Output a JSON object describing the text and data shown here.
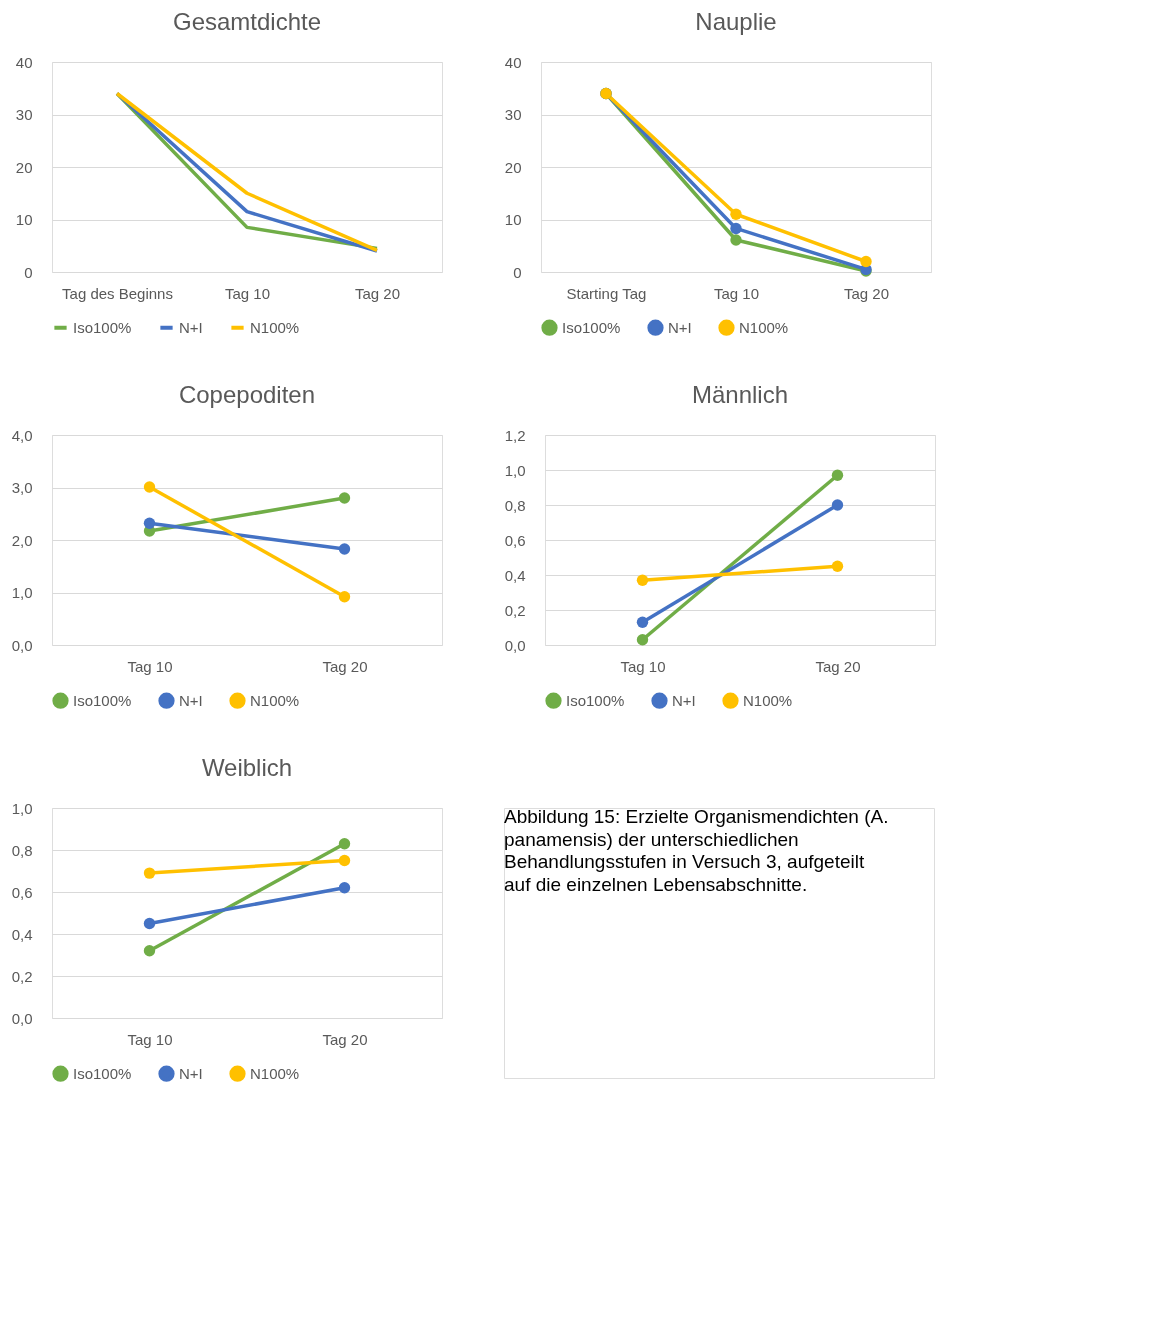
{
  "chart_data": [
    {
      "type": "line",
      "title": "Gesamtdichte",
      "categories": [
        "Tag des Beginns",
        "Tag 10",
        "Tag 20"
      ],
      "ylim": [
        0,
        40
      ],
      "yticks": [
        0,
        10,
        20,
        30,
        40
      ],
      "grid": "y",
      "legend": "bottom",
      "marker": "none",
      "line_style": "solid",
      "series": [
        {
          "name": "Iso100%",
          "color": "#70ad47",
          "values": [
            34,
            8.5,
            4.5
          ]
        },
        {
          "name": "N+I",
          "color": "#4472c4",
          "values": [
            34,
            11.5,
            4.0
          ]
        },
        {
          "name": "N100%",
          "color": "#ffc000",
          "values": [
            34,
            15,
            4.1
          ]
        }
      ]
    },
    {
      "type": "line",
      "title": "Nauplie",
      "categories": [
        "Starting Tag",
        "Tag 10",
        "Tag 20"
      ],
      "ylim": [
        0,
        40
      ],
      "yticks": [
        0,
        10,
        20,
        30,
        40
      ],
      "grid": "y",
      "legend": "bottom",
      "marker": "circle",
      "line_style": "solid",
      "series": [
        {
          "name": "Iso100%",
          "color": "#70ad47",
          "values": [
            34,
            6.1,
            0.2
          ]
        },
        {
          "name": "N+I",
          "color": "#4472c4",
          "values": [
            34,
            8.3,
            0.5
          ]
        },
        {
          "name": "N100%",
          "color": "#ffc000",
          "values": [
            34,
            11,
            2.0
          ]
        }
      ]
    },
    {
      "type": "line",
      "title": "Copepoditen",
      "categories": [
        "Tag 10",
        "Tag 20"
      ],
      "ylim": [
        0,
        4
      ],
      "yticks": [
        {
          "value": 0,
          "label": "0,0"
        },
        {
          "value": 1,
          "label": "1,0"
        },
        {
          "value": 2,
          "label": "2,0"
        },
        {
          "value": 3,
          "label": "3,0"
        },
        {
          "value": 4,
          "label": "4,0"
        }
      ],
      "grid": "y",
      "legend": "bottom",
      "marker": "circle",
      "line_style": "solid",
      "series": [
        {
          "name": "Iso100%",
          "color": "#70ad47",
          "values": [
            2.17,
            2.8
          ]
        },
        {
          "name": "N+I",
          "color": "#4472c4",
          "values": [
            2.32,
            1.83
          ]
        },
        {
          "name": "N100%",
          "color": "#ffc000",
          "values": [
            3.01,
            0.92
          ]
        }
      ]
    },
    {
      "type": "line",
      "title": "Männlich",
      "categories": [
        "Tag 10",
        "Tag 20"
      ],
      "ylim": [
        0,
        1.2
      ],
      "yticks": [
        {
          "value": 0,
          "label": "0,0"
        },
        {
          "value": 0.2,
          "label": "0,2"
        },
        {
          "value": 0.4,
          "label": "0,4"
        },
        {
          "value": 0.6,
          "label": "0,6"
        },
        {
          "value": 0.8,
          "label": "0,8"
        },
        {
          "value": 1.0,
          "label": "1,0"
        },
        {
          "value": 1.2,
          "label": "1,2"
        }
      ],
      "grid": "y",
      "legend": "bottom",
      "marker": "circle",
      "line_style": "solid",
      "series": [
        {
          "name": "Iso100%",
          "color": "#70ad47",
          "values": [
            0.03,
            0.97
          ]
        },
        {
          "name": "N+I",
          "color": "#4472c4",
          "values": [
            0.13,
            0.8
          ]
        },
        {
          "name": "N100%",
          "color": "#ffc000",
          "values": [
            0.37,
            0.45
          ]
        }
      ]
    },
    {
      "type": "line",
      "title": "Weiblich",
      "categories": [
        "Tag 10",
        "Tag 20"
      ],
      "ylim": [
        0,
        1.0
      ],
      "yticks": [
        {
          "value": 0,
          "label": "0,0"
        },
        {
          "value": 0.2,
          "label": "0,2"
        },
        {
          "value": 0.4,
          "label": "0,4"
        },
        {
          "value": 0.6,
          "label": "0,6"
        },
        {
          "value": 0.8,
          "label": "0,8"
        },
        {
          "value": 1.0,
          "label": "1,0"
        }
      ],
      "grid": "y",
      "legend": "bottom",
      "marker": "circle",
      "line_style": "solid",
      "series": [
        {
          "name": "Iso100%",
          "color": "#70ad47",
          "values": [
            0.32,
            0.83
          ]
        },
        {
          "name": "N+I",
          "color": "#4472c4",
          "values": [
            0.45,
            0.62
          ]
        },
        {
          "name": "N100%",
          "color": "#ffc000",
          "values": [
            0.69,
            0.75
          ]
        }
      ]
    },
    {
      "type": "other",
      "annotations": [
        "Abbildung 15: Erzielte Organismendichten (A. panamensis) der unterschiedlichen Behandlungsstufen in Versuch 3, aufgeteilt auf die einzelnen Lebensabschnitte."
      ]
    }
  ]
}
